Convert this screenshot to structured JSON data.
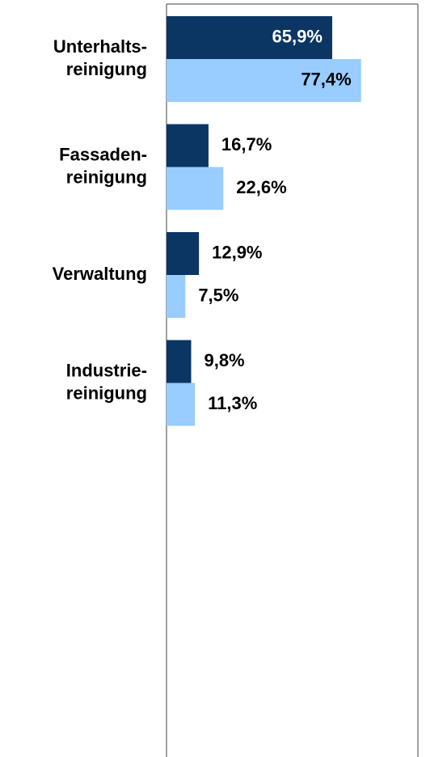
{
  "chart_data": {
    "type": "hbar",
    "categories": [
      "Unterhalts-\nreinigung",
      "Fassaden-\nreinigung",
      "Verwaltung",
      "Industrie-\nreinigung"
    ],
    "series": [
      {
        "color": "#0b3563",
        "values": [
          65.9,
          16.7,
          12.9,
          9.8
        ],
        "value_labels": [
          "65,9%",
          "16,7%",
          "12,9%",
          "9,8%"
        ]
      },
      {
        "color": "#99ccff",
        "values": [
          77.4,
          22.6,
          7.5,
          11.3
        ],
        "value_labels": [
          "77,4%",
          "22,6%",
          "7,5%",
          "11,3%"
        ]
      }
    ],
    "xlim": [
      0,
      100
    ]
  }
}
